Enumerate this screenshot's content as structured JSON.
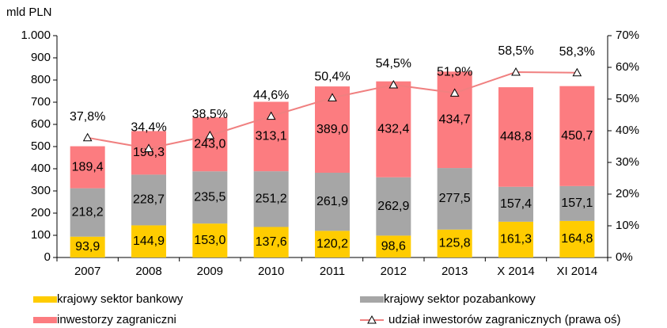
{
  "chart_data": {
    "type": "bar",
    "stacked": true,
    "ylabel": "mld PLN",
    "categories": [
      "2007",
      "2008",
      "2009",
      "2010",
      "2011",
      "2012",
      "2013",
      "X 2014",
      "XI 2014"
    ],
    "series": [
      {
        "name": "krajowy sektor bankowy",
        "color": "#ffcc00",
        "values": [
          93.9,
          144.9,
          153.0,
          137.6,
          120.2,
          98.6,
          125.8,
          161.3,
          164.8
        ],
        "value_labels": [
          "93,9",
          "144,9",
          "153,0",
          "137,6",
          "120,2",
          "98,6",
          "125,8",
          "161,3",
          "164,8"
        ]
      },
      {
        "name": "krajowy sektor pozabankowy",
        "color": "#a6a6a6",
        "values": [
          218.2,
          228.7,
          235.5,
          251.2,
          261.9,
          262.9,
          277.5,
          157.4,
          157.1
        ],
        "value_labels": [
          "218,2",
          "228,7",
          "235,5",
          "251,2",
          "261,9",
          "262,9",
          "277,5",
          "157,4",
          "157,1"
        ]
      },
      {
        "name": "inwestorzy zagraniczni",
        "color": "#fc7c80",
        "values": [
          189.4,
          196.3,
          243.0,
          313.1,
          389.0,
          432.4,
          434.7,
          448.8,
          450.7
        ],
        "value_labels": [
          "189,4",
          "196,3",
          "243,0",
          "313,1",
          "389,0",
          "432,4",
          "434,7",
          "448,8",
          "450,7"
        ]
      },
      {
        "name": "udział inwestorów zagranicznych (prawa oś)",
        "color": "#f08080",
        "type": "line",
        "axis": "y2",
        "values": [
          37.8,
          34.4,
          38.5,
          44.6,
          50.4,
          54.5,
          51.9,
          58.5,
          58.3
        ],
        "value_labels": [
          "37,8%",
          "34,4%",
          "38,5%",
          "44,6%",
          "50,4%",
          "54,5%",
          "51,9%",
          "58,5%",
          "58,3%"
        ]
      }
    ],
    "ylim": [
      0,
      1000
    ],
    "yticks": [
      0,
      100,
      200,
      300,
      400,
      500,
      600,
      700,
      800,
      900,
      {
        "value": 1000,
        "label": "1.000"
      }
    ],
    "y2lim": [
      0,
      70
    ],
    "y2ticks": [
      {
        "value": 0,
        "label": "0%"
      },
      {
        "value": 10,
        "label": "10%"
      },
      {
        "value": 20,
        "label": "20%"
      },
      {
        "value": 30,
        "label": "30%"
      },
      {
        "value": 40,
        "label": "40%"
      },
      {
        "value": 50,
        "label": "50%"
      },
      {
        "value": 60,
        "label": "60%"
      },
      {
        "value": 70,
        "label": "70%"
      }
    ]
  }
}
